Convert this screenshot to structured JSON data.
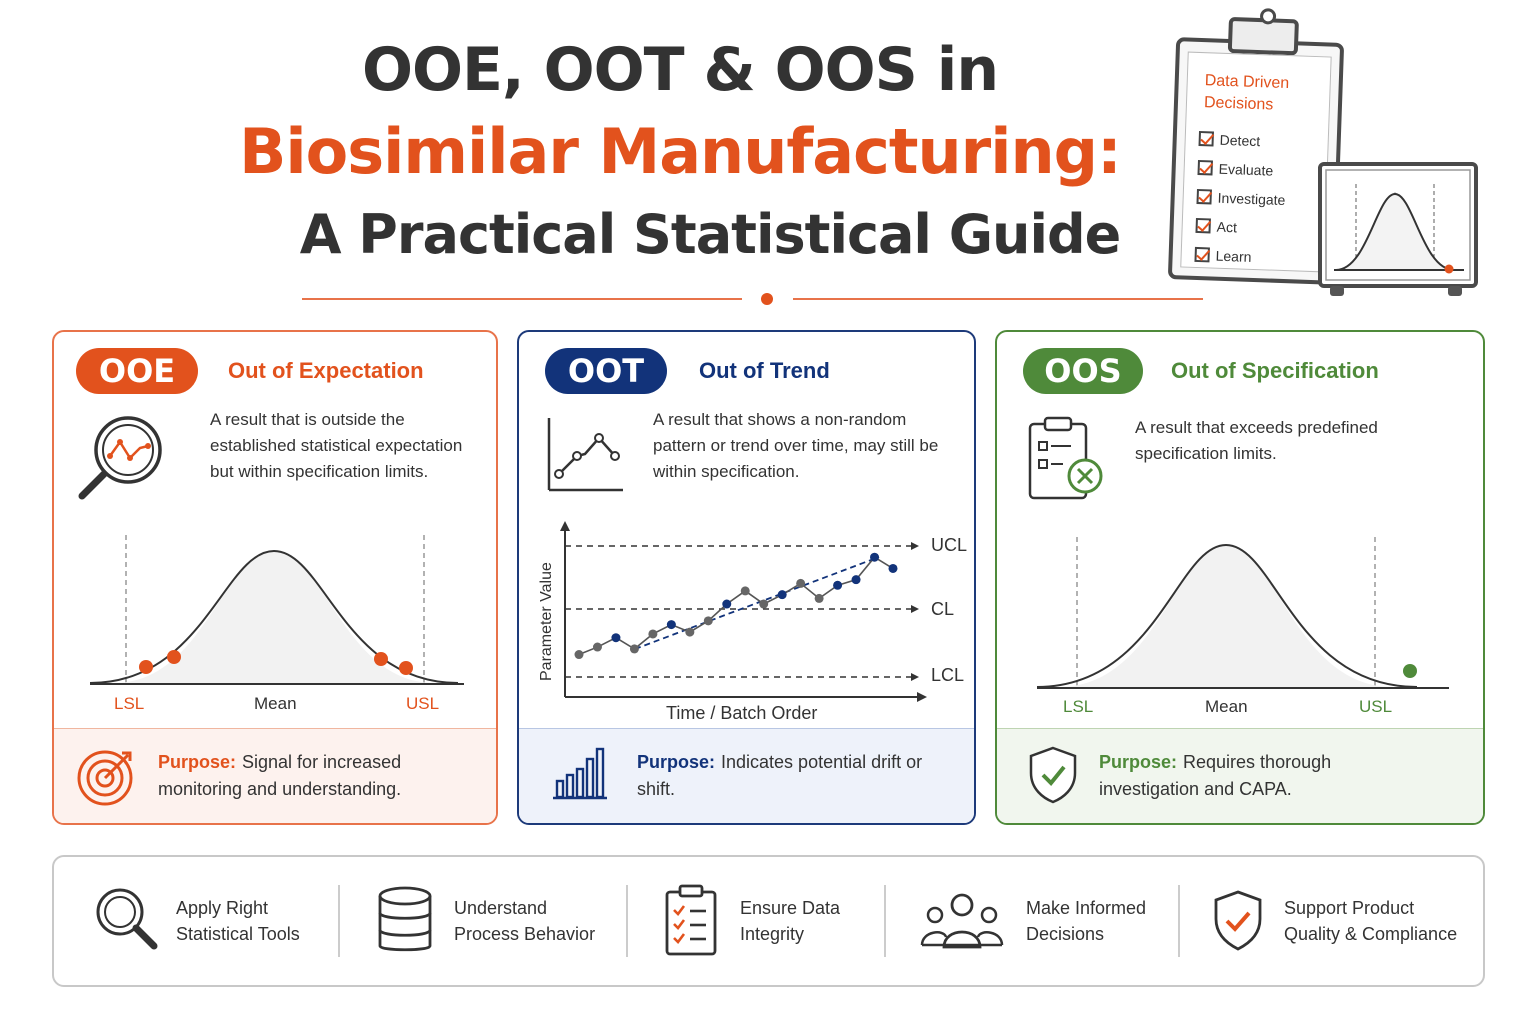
{
  "header": {
    "title_line1": "OOE, OOT & OOS in",
    "title_line2": "Biosimilar Manufacturing:",
    "title_line3": "A Practical Statistical Guide"
  },
  "clipboard": {
    "title": "Data Driven Decisions",
    "items": [
      "Detect",
      "Evaluate",
      "Investigate",
      "Act",
      "Learn"
    ]
  },
  "cards": {
    "ooe": {
      "badge": "OOE",
      "heading": "Out of Expectation",
      "description": "A result that is outside the established statistical expectation but within specification limits.",
      "purpose_label": "Purpose:",
      "purpose_text": "Signal for increased monitoring and understanding.",
      "labels": {
        "lsl": "LSL",
        "mean": "Mean",
        "usl": "USL"
      },
      "accent": "#e2521d"
    },
    "oot": {
      "badge": "OOT",
      "heading": "Out of Trend",
      "description": "A result that shows a non-random pattern or trend over time, may still be within specification.",
      "purpose_label": "Purpose:",
      "purpose_text": "Indicates potential drift or shift.",
      "accent": "#12337a"
    },
    "oos": {
      "badge": "OOS",
      "heading": "Out of Specification",
      "description": "A result that exceeds predefined specification limits.",
      "purpose_label": "Purpose:",
      "purpose_text": "Requires thorough investigation and CAPA.",
      "labels": {
        "lsl": "LSL",
        "mean": "Mean",
        "usl": "USL"
      },
      "accent": "#4f8a3a"
    }
  },
  "chart_data": {
    "type": "line",
    "xlabel": "Time / Batch Order",
    "ylabel": "Parameter Value",
    "reference_lines": [
      "UCL",
      "CL",
      "LCL"
    ],
    "series": [
      {
        "values": [
          1.2,
          1.6,
          2.1,
          1.5,
          2.3,
          2.8,
          2.4,
          3.0,
          3.9,
          4.6,
          3.9,
          4.4,
          5.0,
          4.2,
          4.9,
          5.2,
          6.4,
          5.8
        ]
      }
    ]
  },
  "bottom": {
    "items": [
      {
        "text_line1": "Apply Right",
        "text_line2": "Statistical Tools"
      },
      {
        "text_line1": "Understand",
        "text_line2": "Process Behavior"
      },
      {
        "text_line1": "Ensure Data",
        "text_line2": "Integrity"
      },
      {
        "text_line1": "Make Informed",
        "text_line2": "Decisions"
      },
      {
        "text_line1": "Support Product",
        "text_line2": "Quality & Compliance"
      }
    ]
  }
}
